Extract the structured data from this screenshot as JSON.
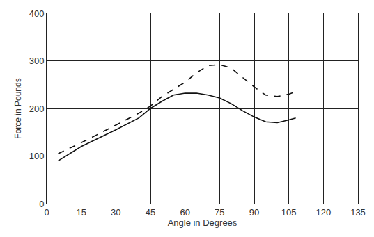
{
  "chart_data": {
    "type": "line",
    "x_label": "Angle in Degrees",
    "y_label": "Force in Pounds",
    "x": [
      5,
      15,
      30,
      40,
      45,
      50,
      55,
      60,
      65,
      70,
      75,
      80,
      85,
      90,
      95,
      100,
      105,
      108
    ],
    "series": [
      {
        "color": "#111111",
        "line_style": "solid",
        "values": [
          90,
          120,
          155,
          180,
          200,
          215,
          228,
          232,
          232,
          228,
          222,
          210,
          195,
          182,
          172,
          170,
          176,
          180
        ]
      },
      {
        "color": "#111111",
        "line_style": "dashed",
        "values": [
          105,
          128,
          165,
          190,
          205,
          225,
          240,
          255,
          275,
          290,
          292,
          285,
          265,
          245,
          228,
          225,
          230,
          235
        ]
      }
    ],
    "xlim": [
      0,
      135
    ],
    "xticks": [
      0,
      15,
      30,
      45,
      60,
      75,
      90,
      105,
      120,
      135
    ],
    "ylim": [
      0,
      400
    ],
    "yticks": [
      0,
      100,
      200,
      300,
      400
    ],
    "grid": true
  }
}
